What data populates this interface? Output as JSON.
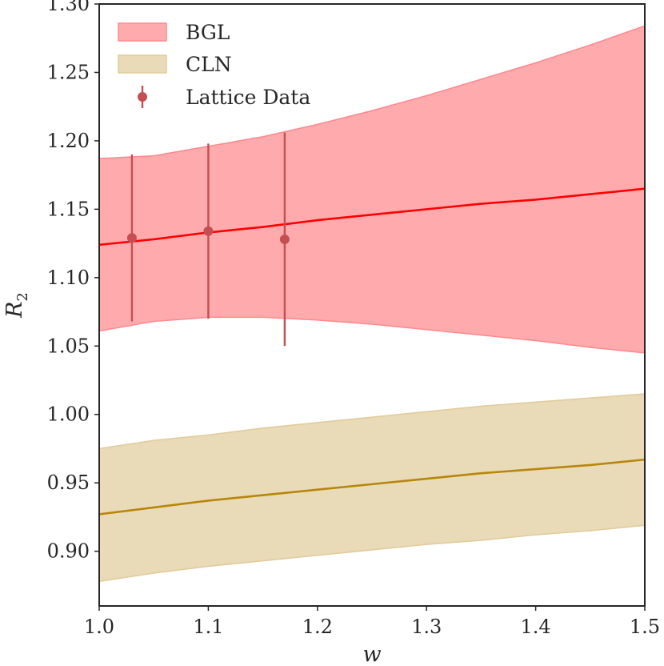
{
  "chart_data": {
    "type": "line",
    "title": "",
    "xlabel": "w",
    "ylabel": "R",
    "ylabel_subscript": "2",
    "xlim": [
      1.0,
      1.5
    ],
    "ylim": [
      0.86,
      1.3
    ],
    "xticks": [
      1.0,
      1.1,
      1.2,
      1.3,
      1.4,
      1.5
    ],
    "yticks": [
      0.9,
      0.95,
      1.0,
      1.05,
      1.1,
      1.15,
      1.2,
      1.25,
      1.3
    ],
    "xtick_labels": [
      "1.0",
      "1.1",
      "1.2",
      "1.3",
      "1.4",
      "1.5"
    ],
    "ytick_labels": [
      "0.90",
      "0.95",
      "1.00",
      "1.05",
      "1.10",
      "1.15",
      "1.20",
      "1.25",
      "1.30"
    ],
    "grid": false,
    "legend_position": "top-left",
    "series": [
      {
        "name": "BGL",
        "kind": "band",
        "color": "#ff8a8f",
        "line_color": "#ff0000",
        "x": [
          1.0,
          1.05,
          1.1,
          1.15,
          1.2,
          1.25,
          1.3,
          1.35,
          1.4,
          1.45,
          1.5
        ],
        "central": [
          1.124,
          1.128,
          1.133,
          1.137,
          1.142,
          1.146,
          1.15,
          1.154,
          1.157,
          1.161,
          1.165
        ],
        "upper": [
          1.187,
          1.189,
          1.196,
          1.203,
          1.212,
          1.222,
          1.233,
          1.245,
          1.257,
          1.27,
          1.284
        ],
        "lower": [
          1.061,
          1.068,
          1.071,
          1.071,
          1.069,
          1.066,
          1.062,
          1.058,
          1.054,
          1.049,
          1.045
        ]
      },
      {
        "name": "CLN",
        "kind": "band",
        "color": "#e1cc9c",
        "line_color": "#b8860b",
        "x": [
          1.0,
          1.05,
          1.1,
          1.15,
          1.2,
          1.25,
          1.3,
          1.35,
          1.4,
          1.45,
          1.5
        ],
        "central": [
          0.927,
          0.932,
          0.937,
          0.941,
          0.945,
          0.949,
          0.953,
          0.957,
          0.96,
          0.963,
          0.967
        ],
        "upper": [
          0.975,
          0.981,
          0.985,
          0.99,
          0.994,
          0.998,
          1.002,
          1.006,
          1.009,
          1.012,
          1.015
        ],
        "lower": [
          0.878,
          0.884,
          0.889,
          0.893,
          0.897,
          0.901,
          0.905,
          0.908,
          0.912,
          0.915,
          0.919
        ]
      },
      {
        "name": "Lattice Data",
        "kind": "errorbar",
        "color": "#c44e52",
        "x": [
          1.03,
          1.1,
          1.17
        ],
        "y": [
          1.129,
          1.134,
          1.128
        ],
        "yerr": [
          0.061,
          0.064,
          0.078
        ]
      }
    ]
  }
}
